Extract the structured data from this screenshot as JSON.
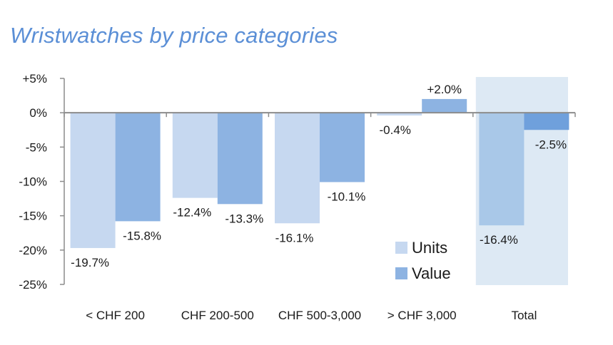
{
  "chart_data": {
    "type": "bar",
    "title": "Wristwatches by price categories",
    "categories": [
      "< CHF 200",
      "CHF 200-500",
      "CHF 500-3,000",
      "> CHF 3,000",
      "Total"
    ],
    "series": [
      {
        "name": "Units",
        "values": [
          -19.7,
          -12.4,
          -16.1,
          -0.4,
          -16.4
        ],
        "labels": [
          "-19.7%",
          "-12.4%",
          "-16.1%",
          "-0.4%",
          "-16.4%"
        ],
        "color": "#c6d8f0"
      },
      {
        "name": "Value",
        "values": [
          -15.8,
          -13.3,
          -10.1,
          2.0,
          -2.5
        ],
        "labels": [
          "-15.8%",
          "-13.3%",
          "-10.1%",
          "+2.0%",
          "-2.5%"
        ],
        "color": "#8db3e2"
      }
    ],
    "yticks": [
      "+5%",
      "0%",
      "-5%",
      "-10%",
      "-15%",
      "-20%",
      "-25%"
    ],
    "ylim": [
      -25,
      5
    ],
    "xlabel": "",
    "ylabel": "",
    "legend": "bottom-right",
    "highlight_category": "Total",
    "highlight_color": "#dde9f4",
    "total_bar_colors": [
      "#a9c8e8",
      "#6fa0dc"
    ]
  }
}
